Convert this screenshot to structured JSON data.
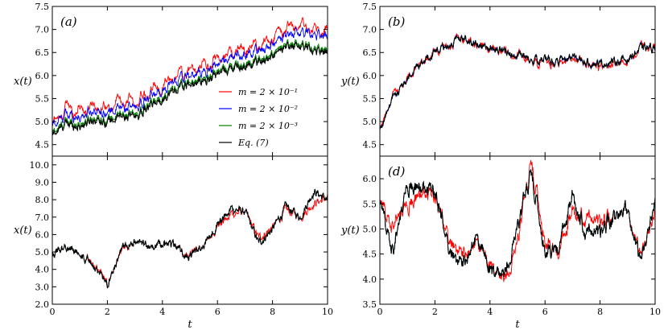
{
  "figure": {
    "colors": {
      "m1": "#ff0000",
      "m2": "#0000ff",
      "m3": "#008000",
      "eq": "#000000"
    }
  },
  "chart_data": [
    {
      "type": "line",
      "panel_label": "(a)",
      "ylabel": "x(t)",
      "xlabel": "",
      "xlim": [
        0,
        10
      ],
      "ylim": [
        4.25,
        7.5
      ],
      "yticks": [
        "4.5",
        "5.0",
        "5.5",
        "6.0",
        "6.5",
        "7.0",
        "7.5"
      ],
      "xticks": [],
      "legend": "center-right",
      "x": [
        0,
        0.5,
        1,
        1.5,
        2,
        2.5,
        3,
        3.5,
        4,
        4.5,
        5,
        5.5,
        6,
        6.5,
        7,
        7.5,
        8,
        8.5,
        9,
        9.5,
        10
      ],
      "series": [
        {
          "name": "m = 2 × 10⁻¹",
          "color": "#ff0000",
          "values": [
            4.9,
            5.3,
            5.25,
            5.35,
            5.3,
            5.45,
            5.4,
            5.6,
            5.8,
            6.0,
            6.1,
            6.2,
            6.35,
            6.5,
            6.6,
            6.65,
            6.8,
            7.0,
            7.1,
            7.0,
            6.95
          ]
        },
        {
          "name": "m = 2 × 10⁻²",
          "color": "#0000ff",
          "values": [
            4.9,
            5.15,
            5.1,
            5.25,
            5.2,
            5.3,
            5.3,
            5.5,
            5.7,
            5.9,
            6.0,
            6.05,
            6.25,
            6.4,
            6.45,
            6.55,
            6.65,
            6.85,
            6.95,
            6.9,
            6.85
          ]
        },
        {
          "name": "m = 2 × 10⁻³",
          "color": "#008000",
          "values": [
            4.75,
            5.0,
            4.95,
            5.1,
            5.05,
            5.15,
            5.15,
            5.35,
            5.55,
            5.75,
            5.85,
            5.9,
            6.1,
            6.2,
            6.25,
            6.35,
            6.45,
            6.65,
            6.7,
            6.6,
            6.55
          ]
        },
        {
          "name": "Eq. (7)",
          "color": "#000000",
          "values": [
            4.7,
            4.95,
            4.9,
            5.05,
            5.0,
            5.1,
            5.1,
            5.3,
            5.5,
            5.7,
            5.8,
            5.85,
            6.05,
            6.15,
            6.2,
            6.3,
            6.4,
            6.6,
            6.65,
            6.55,
            6.5
          ]
        }
      ]
    },
    {
      "type": "line",
      "panel_label": "(b)",
      "ylabel": "y(t)",
      "xlabel": "",
      "xlim": [
        0,
        10
      ],
      "ylim": [
        4.25,
        7.5
      ],
      "yticks": [
        "4.5",
        "5.0",
        "5.5",
        "6.0",
        "6.5",
        "7.0",
        "7.5"
      ],
      "xticks": [],
      "x": [
        0,
        0.5,
        1,
        1.5,
        2,
        2.5,
        3,
        3.5,
        4,
        4.5,
        5,
        5.5,
        6,
        6.5,
        7,
        7.5,
        8,
        8.5,
        9,
        9.5,
        10
      ],
      "series": [
        {
          "name": "m = 2 × 10⁻¹",
          "color": "#ff0000",
          "values": [
            4.8,
            5.6,
            5.9,
            6.3,
            6.5,
            6.65,
            6.8,
            6.7,
            6.6,
            6.55,
            6.45,
            6.3,
            6.3,
            6.25,
            6.35,
            6.3,
            6.2,
            6.25,
            6.3,
            6.6,
            6.6
          ]
        },
        {
          "name": "m = 2 × 10⁻²",
          "color": "#0000ff",
          "values": [
            4.8,
            5.55,
            5.9,
            6.3,
            6.5,
            6.65,
            6.8,
            6.7,
            6.6,
            6.55,
            6.45,
            6.35,
            6.35,
            6.3,
            6.4,
            6.3,
            6.25,
            6.3,
            6.35,
            6.6,
            6.6
          ]
        },
        {
          "name": "m = 2 × 10⁻³",
          "color": "#008000",
          "values": [
            4.8,
            5.55,
            5.9,
            6.3,
            6.5,
            6.65,
            6.8,
            6.7,
            6.6,
            6.55,
            6.45,
            6.35,
            6.35,
            6.3,
            6.4,
            6.3,
            6.25,
            6.3,
            6.35,
            6.6,
            6.6
          ]
        },
        {
          "name": "Eq. (7)",
          "color": "#000000",
          "values": [
            4.8,
            5.55,
            5.9,
            6.3,
            6.5,
            6.65,
            6.8,
            6.7,
            6.6,
            6.55,
            6.45,
            6.35,
            6.35,
            6.3,
            6.4,
            6.3,
            6.25,
            6.3,
            6.35,
            6.6,
            6.6
          ]
        }
      ]
    },
    {
      "type": "line",
      "panel_label": "",
      "ylabel": "x(t)",
      "xlabel": "t",
      "xlim": [
        0,
        10
      ],
      "ylim": [
        2.0,
        10.5
      ],
      "yticks": [
        "2.0",
        "3.0",
        "4.0",
        "5.0",
        "6.0",
        "7.0",
        "8.0",
        "9.0",
        "10.0"
      ],
      "xticks": [
        "0",
        "2",
        "4",
        "6",
        "8",
        "10"
      ],
      "x": [
        0,
        0.5,
        1,
        1.5,
        2,
        2.5,
        3,
        3.5,
        4,
        4.5,
        5,
        5.5,
        6,
        6.5,
        7,
        7.5,
        8,
        8.5,
        9,
        9.5,
        10
      ],
      "series": [
        {
          "name": "m = 2 × 10⁻¹",
          "color": "#ff0000",
          "values": [
            5.0,
            5.3,
            5.0,
            4.2,
            3.3,
            5.0,
            5.6,
            5.3,
            5.5,
            5.3,
            4.8,
            5.4,
            6.5,
            7.2,
            7.3,
            5.8,
            6.4,
            7.4,
            7.0,
            7.8,
            8.1
          ]
        },
        {
          "name": "m = 2 × 10⁻²",
          "color": "#0000ff",
          "values": [
            5.0,
            5.3,
            5.0,
            4.1,
            3.2,
            5.1,
            5.6,
            5.3,
            5.5,
            5.3,
            4.7,
            5.4,
            6.6,
            7.5,
            7.3,
            5.5,
            6.3,
            7.6,
            7.0,
            8.5,
            8.0
          ]
        },
        {
          "name": "m = 2 × 10⁻³",
          "color": "#008000",
          "values": [
            5.0,
            5.3,
            5.0,
            4.1,
            3.2,
            5.1,
            5.6,
            5.3,
            5.5,
            5.3,
            4.7,
            5.4,
            6.6,
            7.5,
            7.3,
            5.5,
            6.3,
            7.6,
            7.0,
            8.5,
            8.0
          ]
        },
        {
          "name": "Eq. (7)",
          "color": "#000000",
          "values": [
            5.0,
            5.3,
            5.0,
            4.1,
            3.2,
            5.1,
            5.6,
            5.3,
            5.5,
            5.3,
            4.7,
            5.4,
            6.6,
            7.5,
            7.3,
            5.5,
            6.3,
            7.6,
            7.0,
            8.5,
            8.0
          ]
        }
      ]
    },
    {
      "type": "line",
      "panel_label": "(d)",
      "ylabel": "y(t)",
      "xlabel": "t",
      "xlim": [
        0,
        10
      ],
      "ylim": [
        3.5,
        6.45
      ],
      "yticks": [
        "3.5",
        "4.0",
        "4.5",
        "5.0",
        "5.5",
        "6.0"
      ],
      "xticks": [
        "0",
        "2",
        "4",
        "6",
        "8",
        "10"
      ],
      "x": [
        0,
        0.5,
        1,
        1.5,
        2,
        2.5,
        3,
        3.5,
        4,
        4.5,
        5,
        5.5,
        6,
        6.5,
        7,
        7.5,
        8,
        8.5,
        9,
        9.5,
        10
      ],
      "series": [
        {
          "name": "m = 2 × 10⁻¹",
          "color": "#ff0000",
          "values": [
            5.5,
            5.1,
            5.5,
            5.7,
            5.6,
            4.8,
            4.5,
            4.7,
            4.3,
            3.9,
            4.7,
            6.3,
            4.8,
            4.5,
            5.3,
            5.3,
            5.1,
            5.2,
            5.3,
            4.4,
            5.4
          ]
        },
        {
          "name": "m = 2 × 10⁻²",
          "color": "#0000ff",
          "values": [
            5.5,
            4.6,
            5.9,
            5.8,
            5.7,
            4.6,
            4.3,
            4.8,
            4.2,
            4.0,
            5.0,
            6.1,
            4.6,
            4.6,
            5.6,
            5.0,
            4.9,
            5.2,
            5.3,
            4.3,
            5.6
          ]
        },
        {
          "name": "m = 2 × 10⁻³",
          "color": "#008000",
          "values": [
            5.5,
            4.6,
            5.9,
            5.8,
            5.7,
            4.6,
            4.3,
            4.8,
            4.2,
            4.0,
            5.0,
            6.1,
            4.6,
            4.6,
            5.6,
            5.0,
            4.9,
            5.2,
            5.3,
            4.3,
            5.6
          ]
        },
        {
          "name": "Eq. (7)",
          "color": "#000000",
          "values": [
            5.5,
            4.6,
            5.9,
            5.8,
            5.7,
            4.6,
            4.3,
            4.8,
            4.2,
            4.0,
            5.0,
            6.1,
            4.6,
            4.6,
            5.6,
            5.0,
            4.9,
            5.2,
            5.3,
            4.3,
            5.6
          ]
        }
      ]
    }
  ],
  "legend": {
    "entries": [
      {
        "label": "m = 2 × 10⁻¹",
        "color": "#ff0000"
      },
      {
        "label": "m = 2 × 10⁻²",
        "color": "#0000ff"
      },
      {
        "label": "m = 2 × 10⁻³",
        "color": "#008000"
      },
      {
        "label": "Eq. (7)",
        "color": "#000000"
      }
    ]
  }
}
